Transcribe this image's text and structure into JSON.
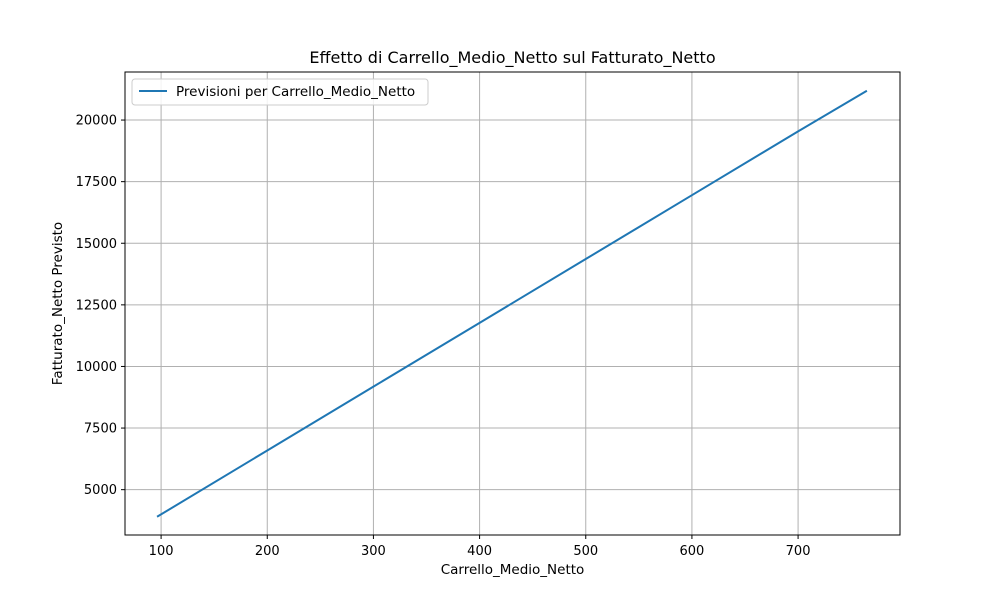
{
  "chart_data": {
    "type": "line",
    "title": "Effetto di Carrello_Medio_Netto sul Fatturato_Netto",
    "xlabel": "Carrello_Medio_Netto",
    "ylabel": "Fatturato_Netto Previsto",
    "xlim": [
      66,
      796
    ],
    "ylim": [
      3160,
      21950
    ],
    "x_ticks": [
      100,
      200,
      300,
      400,
      500,
      600,
      700
    ],
    "y_ticks": [
      5000,
      7500,
      10000,
      12500,
      15000,
      17500,
      20000
    ],
    "grid": true,
    "legend_position": "upper left",
    "series": [
      {
        "name": "Previsioni per Carrello_Medio_Netto",
        "color": "#1f77b4",
        "x": [
          97,
          200,
          300,
          400,
          500,
          600,
          700,
          764
        ],
        "y": [
          3920,
          6590,
          9180,
          11770,
          14360,
          16950,
          19540,
          21170
        ]
      }
    ]
  }
}
